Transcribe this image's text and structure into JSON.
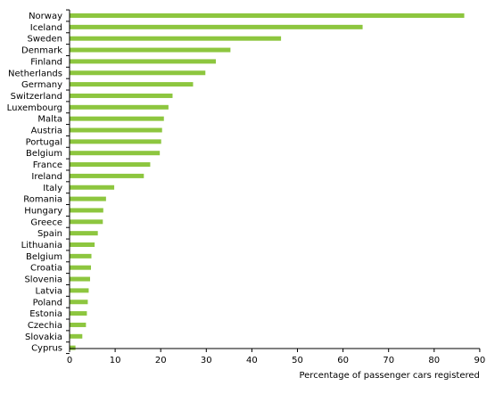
{
  "chart_data": {
    "type": "bar",
    "orientation": "horizontal",
    "categories": [
      "Norway",
      "Iceland",
      "Sweden",
      "Denmark",
      "Finland",
      "Netherlands",
      "Germany",
      "Switzerland",
      "Luxembourg",
      "Malta",
      "Austria",
      "Portugal",
      "Belgium",
      "France",
      "Ireland",
      "Italy",
      "Romania",
      "Hungary",
      "Greece",
      "Spain",
      "Lithuania",
      "Belgium",
      "Croatia",
      "Slovenia",
      "Latvia",
      "Poland",
      "Estonia",
      "Czechia",
      "Slovakia",
      "Cyprus"
    ],
    "values": [
      86.5,
      64.2,
      46.3,
      35.2,
      32.0,
      29.7,
      27.0,
      22.5,
      21.6,
      20.6,
      20.2,
      20.0,
      19.7,
      17.6,
      16.2,
      9.7,
      7.9,
      7.3,
      7.2,
      6.1,
      5.4,
      4.7,
      4.6,
      4.4,
      4.1,
      3.9,
      3.7,
      3.5,
      2.7,
      1.2
    ],
    "xlabel": "Percentage of passenger cars registered",
    "ylabel": "",
    "title": "",
    "xlim": [
      0,
      90
    ],
    "xticks": [
      "0",
      "10",
      "20",
      "30",
      "40",
      "50",
      "60",
      "70",
      "80",
      "90"
    ],
    "grid": false,
    "bar_color": "#8dc63f"
  }
}
